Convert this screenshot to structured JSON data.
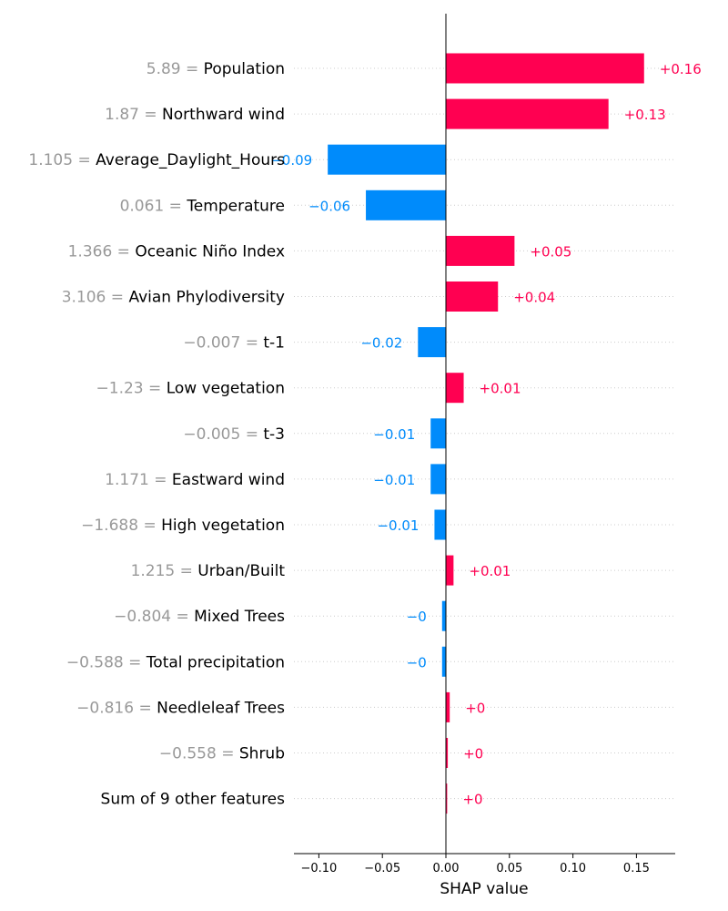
{
  "chart_data": {
    "type": "bar",
    "title": "",
    "xlabel": "SHAP value",
    "ylabel": "",
    "xlim": [
      -0.12,
      0.18
    ],
    "xticks": [
      {
        "value": -0.1,
        "label": "−0.10"
      },
      {
        "value": -0.05,
        "label": "−0.05"
      },
      {
        "value": 0.0,
        "label": "0.00"
      },
      {
        "value": 0.05,
        "label": "0.05"
      },
      {
        "value": 0.1,
        "label": "0.10"
      },
      {
        "value": 0.15,
        "label": "0.15"
      }
    ],
    "grid": "dotted horizontal lines per feature row",
    "colors": {
      "positive": "#ff0051",
      "negative": "#008bfb",
      "feature_value": "#999999",
      "feature_name": "#000000",
      "zero_line": "#000000"
    },
    "features": [
      {
        "value_text": "5.89 =",
        "name": "Population",
        "shap": 0.156,
        "label": "+0.16"
      },
      {
        "value_text": "1.87 =",
        "name": "Northward wind",
        "shap": 0.128,
        "label": "+0.13"
      },
      {
        "value_text": "1.105 =",
        "name": "Average_Daylight_Hours",
        "shap": -0.093,
        "label": "−0.09"
      },
      {
        "value_text": "0.061 =",
        "name": "Temperature",
        "shap": -0.063,
        "label": "−0.06"
      },
      {
        "value_text": "1.366 =",
        "name": "Oceanic Niño Index",
        "shap": 0.054,
        "label": "+0.05"
      },
      {
        "value_text": "3.106 =",
        "name": "Avian Phylodiversity",
        "shap": 0.041,
        "label": "+0.04"
      },
      {
        "value_text": "−0.007 =",
        "name": "t-1",
        "shap": -0.022,
        "label": "−0.02"
      },
      {
        "value_text": "−1.23 =",
        "name": "Low vegetation",
        "shap": 0.014,
        "label": "+0.01"
      },
      {
        "value_text": "−0.005 =",
        "name": "t-3",
        "shap": -0.012,
        "label": "−0.01"
      },
      {
        "value_text": "1.171 =",
        "name": "Eastward wind",
        "shap": -0.012,
        "label": "−0.01"
      },
      {
        "value_text": "−1.688 =",
        "name": "High vegetation",
        "shap": -0.009,
        "label": "−0.01"
      },
      {
        "value_text": "1.215 =",
        "name": "Urban/Built",
        "shap": 0.006,
        "label": "+0.01"
      },
      {
        "value_text": "−0.804 =",
        "name": "Mixed Trees",
        "shap": -0.003,
        "label": "−0"
      },
      {
        "value_text": "−0.588 =",
        "name": "Total precipitation",
        "shap": -0.003,
        "label": "−0"
      },
      {
        "value_text": "−0.816 =",
        "name": "Needleleaf Trees",
        "shap": 0.003,
        "label": "+0"
      },
      {
        "value_text": "−0.558 =",
        "name": "Shrub",
        "shap": 0.0015,
        "label": "+0"
      },
      {
        "value_text": "",
        "name": "Sum of 9 other features",
        "shap": 0.001,
        "label": "+0"
      }
    ]
  }
}
